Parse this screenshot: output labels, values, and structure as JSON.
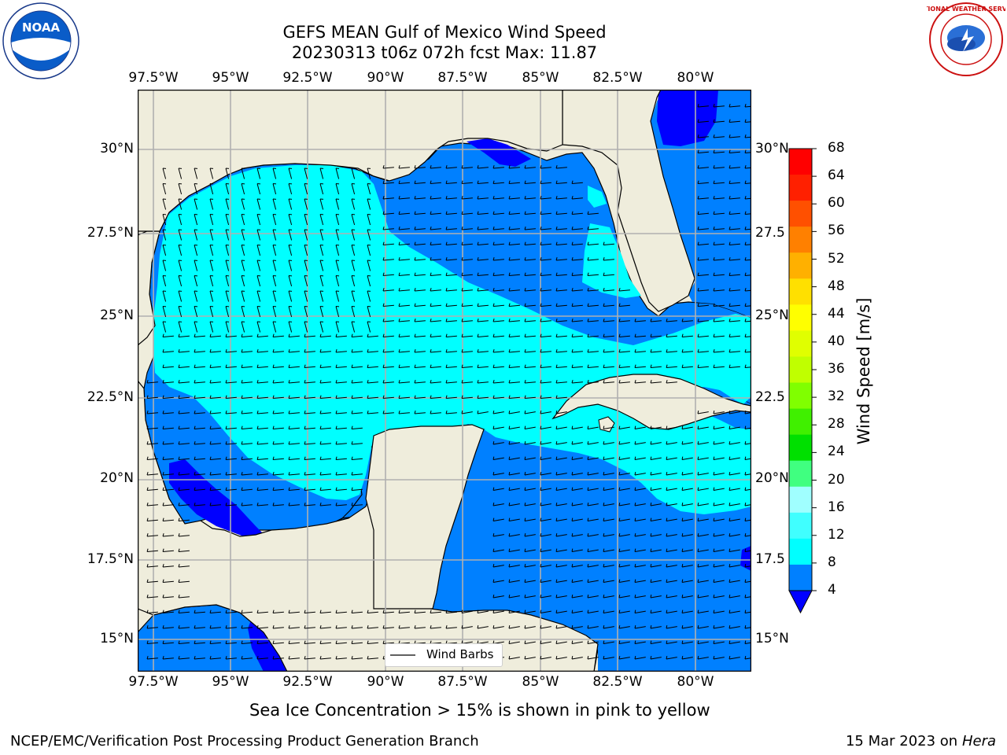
{
  "header": {
    "title_line1": "GEFS MEAN Gulf of Mexico Wind Speed",
    "title_line2": "20230313 t06z 072h fcst   Max: 11.87",
    "logo_left_text": "NOAA",
    "logo_right_text": "NATIONAL WEATHER SERVICE"
  },
  "map": {
    "lon_labels": [
      "97.5°W",
      "95°W",
      "92.5°W",
      "90°W",
      "87.5°W",
      "85°W",
      "82.5°W",
      "80°W"
    ],
    "lat_labels": [
      "30°N",
      "27.5°N",
      "25°N",
      "22.5°N",
      "20°N",
      "17.5°N",
      "15°N"
    ],
    "lat_labels_right": [
      "30°N",
      "27.5",
      "25°N",
      "22.5",
      "20°N",
      "17.5",
      "15°N"
    ],
    "legend_label": "Wind Barbs",
    "colors": {
      "land": "#efeddc",
      "band_4_8": "#0080ff",
      "band_8_12": "#00ffff",
      "band_below_4": "#0000ff",
      "grid": "#b0b0b0"
    }
  },
  "colorbar": {
    "label": "Wind Speed [m/s]",
    "ticks": [
      "68",
      "64",
      "60",
      "56",
      "52",
      "48",
      "44",
      "40",
      "36",
      "32",
      "28",
      "24",
      "20",
      "16",
      "12",
      "8",
      "4"
    ],
    "colors": [
      "#ff0000",
      "#ff2000",
      "#ff5000",
      "#ff8000",
      "#ffb000",
      "#ffe000",
      "#ffff00",
      "#e0ff00",
      "#c0ff00",
      "#80ff00",
      "#40f000",
      "#00e000",
      "#40ff80",
      "#a0ffff",
      "#40ffff",
      "#00ffff",
      "#0080ff"
    ],
    "under_color": "#0000ff"
  },
  "footer": {
    "note": "Sea Ice Concentration > 15% is shown in pink to yellow",
    "credit": "NCEP/EMC/Verification Post Processing Product Generation Branch",
    "date": "15 Mar 2023 on",
    "machine": "Hera"
  }
}
